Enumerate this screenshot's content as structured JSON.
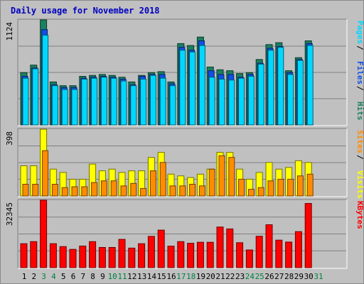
{
  "title": "Daily usage for November 2018",
  "colors": {
    "hits": "#1a8060",
    "files": "#1050e8",
    "pages": "#00d8ff",
    "visits": "#ffff00",
    "sites": "#ff8c00",
    "kbytes": "#ff0000",
    "weekend_day": "#008040",
    "weekday": "#000000"
  },
  "days": [
    "1",
    "2",
    "3",
    "4",
    "5",
    "6",
    "7",
    "8",
    "9",
    "10",
    "11",
    "12",
    "13",
    "14",
    "15",
    "16",
    "17",
    "18",
    "19",
    "20",
    "21",
    "22",
    "23",
    "24",
    "25",
    "26",
    "27",
    "28",
    "29",
    "30",
    "31"
  ],
  "weekend_days": [
    3,
    4,
    10,
    11,
    17,
    18,
    24,
    25,
    31
  ],
  "chart_data": [
    {
      "type": "bar",
      "name": "hits-files-pages",
      "ymax_label": "1124",
      "ylim": [
        0,
        1124
      ],
      "legend": [
        {
          "label": "Pages",
          "key": "pages"
        },
        {
          "label": "Files",
          "key": "files"
        },
        {
          "label": "Hits",
          "key": "hits"
        }
      ],
      "series": [
        {
          "name": "Hits",
          "key": "hits",
          "values": [
            560,
            640,
            1124,
            460,
            420,
            420,
            520,
            530,
            540,
            530,
            510,
            460,
            530,
            560,
            570,
            460,
            870,
            850,
            940,
            620,
            590,
            580,
            550,
            560,
            700,
            860,
            880,
            580,
            720,
            900,
            0
          ]
        },
        {
          "name": "Files",
          "key": "files",
          "values": [
            520,
            610,
            1020,
            430,
            400,
            400,
            500,
            510,
            520,
            510,
            490,
            430,
            520,
            540,
            540,
            440,
            830,
            800,
            900,
            580,
            540,
            540,
            510,
            540,
            660,
            820,
            840,
            560,
            700,
            870,
            0
          ]
        },
        {
          "name": "Pages",
          "key": "pages",
          "values": [
            500,
            600,
            960,
            420,
            380,
            380,
            490,
            500,
            510,
            500,
            470,
            420,
            490,
            530,
            500,
            420,
            800,
            780,
            850,
            510,
            490,
            480,
            500,
            520,
            650,
            800,
            830,
            540,
            690,
            850,
            0
          ]
        }
      ]
    },
    {
      "type": "bar",
      "name": "visits-sites",
      "ymax_label": "398",
      "ylim": [
        0,
        398
      ],
      "legend": [
        {
          "label": "Sites",
          "key": "sites"
        },
        {
          "label": "Visits",
          "key": "visits"
        }
      ],
      "series": [
        {
          "name": "Visits",
          "key": "visits",
          "values": [
            180,
            180,
            398,
            160,
            140,
            100,
            100,
            190,
            150,
            160,
            140,
            150,
            150,
            230,
            260,
            130,
            120,
            110,
            130,
            160,
            260,
            260,
            160,
            100,
            140,
            200,
            160,
            170,
            210,
            200,
            0
          ]
        },
        {
          "name": "Sites",
          "key": "sites",
          "values": [
            70,
            70,
            270,
            70,
            50,
            55,
            55,
            80,
            90,
            90,
            60,
            75,
            45,
            150,
            200,
            60,
            60,
            70,
            60,
            160,
            240,
            230,
            100,
            40,
            50,
            90,
            100,
            100,
            120,
            130,
            0
          ]
        }
      ]
    },
    {
      "type": "bar",
      "name": "kbytes",
      "ymax_label": "32345",
      "ylim": [
        0,
        32345
      ],
      "legend": [
        {
          "label": "KBytes",
          "key": "kbytes"
        }
      ],
      "series": [
        {
          "name": "KBytes",
          "key": "kbytes",
          "values": [
            11500,
            12500,
            32345,
            11500,
            10100,
            8800,
            10400,
            12500,
            9700,
            9700,
            13600,
            9400,
            11500,
            15000,
            18000,
            10300,
            12500,
            11700,
            12200,
            12200,
            19500,
            18600,
            12000,
            8500,
            15100,
            20600,
            13200,
            12300,
            17300,
            30800,
            0
          ]
        }
      ]
    }
  ]
}
